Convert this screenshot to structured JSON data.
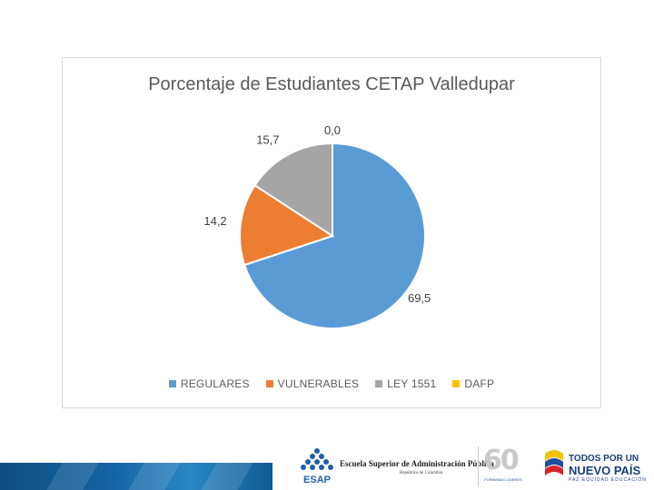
{
  "chart_data": {
    "type": "pie",
    "title": "Porcentaje de Estudiantes CETAP Valledupar",
    "categories": [
      "REGULARES",
      "VULNERABLES",
      "LEY 1551",
      "DAFP"
    ],
    "values": [
      69.5,
      14.2,
      15.7,
      0.0
    ],
    "data_labels": [
      "69,5",
      "14,2",
      "15,7",
      "0,0"
    ],
    "colors": [
      "#5b9bd5",
      "#ed7d31",
      "#a5a5a5",
      "#ffc000"
    ],
    "legend_position": "bottom"
  },
  "footer": {
    "esap_name": "Escuela Superior de Administración Pública",
    "esap_country": "República de Colombia",
    "esap_acronym": "ESAP",
    "sixty_number": "60",
    "sixty_tagline": "FORMANDO LÍDERES",
    "pais_line1": "TODOS POR UN",
    "pais_line2": "NUEVO PAÍS",
    "pais_line3": "PAZ EQUIDAD EDUCACIÓN"
  }
}
